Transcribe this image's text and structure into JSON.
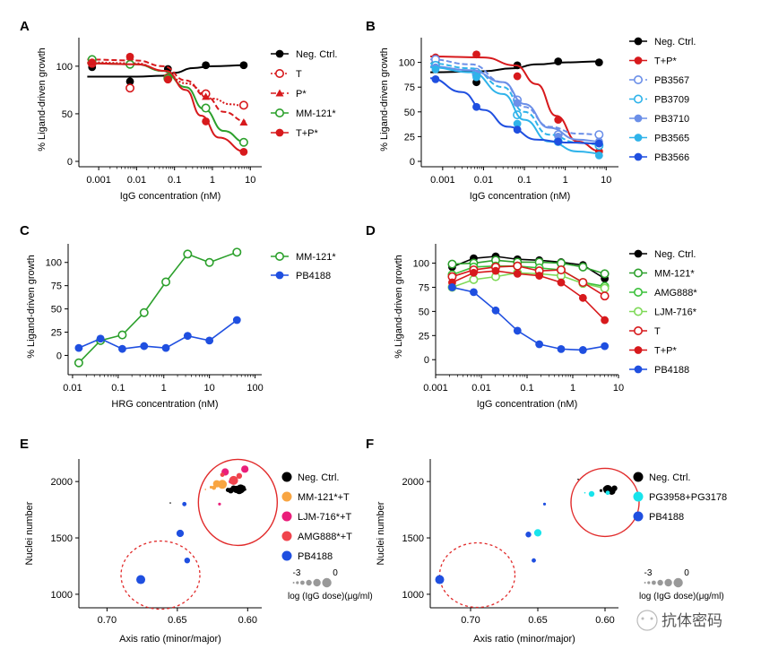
{
  "watermark": "抗体密码",
  "chart_data": [
    {
      "panel": "A",
      "type": "line",
      "xscale": "log",
      "xlabel": "IgG concentration (nM)",
      "ylabel": "% Ligand-driven growth",
      "xticks": [
        "0.001",
        "0.01",
        "0.1",
        "1",
        "10"
      ],
      "yticks": [
        "0",
        "50",
        "100"
      ],
      "xlim": [
        0.0003,
        20
      ],
      "ylim": [
        0,
        130
      ],
      "x": [
        0.00067,
        0.0067,
        0.067,
        0.67,
        6.7
      ],
      "legend": [
        "Neg. Ctrl.",
        "T",
        "P*",
        "MM-121*",
        "T+P*"
      ],
      "series": [
        {
          "name": "Neg. Ctrl.",
          "color": "#000000",
          "marker": "filled",
          "dash": "solid",
          "values": [
            99,
            84,
            97,
            101,
            101
          ],
          "fit": [
            [
              0.0005,
              89
            ],
            [
              0.01,
              89
            ],
            [
              0.05,
              90
            ],
            [
              0.1,
              93
            ],
            [
              0.3,
              98
            ],
            [
              1,
              100
            ],
            [
              7.5,
              101
            ]
          ]
        },
        {
          "name": "T",
          "color": "#d7191c",
          "marker": "open",
          "dash": "dotted",
          "values": [
            103,
            77,
            88,
            71,
            59
          ],
          "fit": [
            [
              0.0005,
              104
            ],
            [
              0.01,
              103
            ],
            [
              0.05,
              95
            ],
            [
              0.2,
              82
            ],
            [
              1,
              66
            ],
            [
              3,
              60
            ],
            [
              7.5,
              58
            ]
          ]
        },
        {
          "name": "P*",
          "color": "#d7191c",
          "marker": "triangle",
          "dash": "dashed",
          "values": [
            104,
            110,
            90,
            68,
            41
          ],
          "fit": [
            [
              0.0005,
              107
            ],
            [
              0.01,
              106
            ],
            [
              0.05,
              100
            ],
            [
              0.2,
              85
            ],
            [
              0.7,
              68
            ],
            [
              2,
              52
            ],
            [
              7.5,
              42
            ]
          ]
        },
        {
          "name": "MM-121*",
          "color": "#2ca02c",
          "marker": "open",
          "dash": "solid",
          "values": [
            107,
            102,
            87,
            56,
            20
          ],
          "fit": [
            [
              0.0005,
              103
            ],
            [
              0.01,
              102
            ],
            [
              0.05,
              95
            ],
            [
              0.2,
              78
            ],
            [
              0.6,
              55
            ],
            [
              2,
              32
            ],
            [
              7.5,
              20
            ]
          ]
        },
        {
          "name": "T+P*",
          "color": "#d7191c",
          "marker": "filled",
          "dash": "solid",
          "values": [
            104,
            110,
            86,
            42,
            10
          ],
          "fit": [
            [
              0.0005,
              103
            ],
            [
              0.01,
              102
            ],
            [
              0.06,
              95
            ],
            [
              0.2,
              75
            ],
            [
              0.5,
              48
            ],
            [
              1.5,
              25
            ],
            [
              7.5,
              10
            ]
          ]
        }
      ]
    },
    {
      "panel": "B",
      "type": "line",
      "xscale": "log",
      "xlabel": "IgG concentration (nM)",
      "ylabel": "% Ligand-driven growth",
      "xticks": [
        "0.001",
        "0.01",
        "0.1",
        "1",
        "10"
      ],
      "yticks": [
        "0",
        "25",
        "50",
        "75",
        "100"
      ],
      "xlim": [
        0.0003,
        20
      ],
      "ylim": [
        0,
        125
      ],
      "x": [
        0.00067,
        0.0067,
        0.067,
        0.67,
        6.7
      ],
      "legend": [
        "Neg. Ctrl.",
        "T+P*",
        "PB3567",
        "PB3709",
        "PB3710",
        "PB3565",
        "PB3566"
      ],
      "series": [
        {
          "name": "Neg. Ctrl.",
          "color": "#000000",
          "marker": "filled",
          "dash": "solid",
          "values": [
            100,
            80,
            97,
            101,
            100
          ],
          "fit": [
            [
              0.0005,
              90
            ],
            [
              0.01,
              91
            ],
            [
              0.05,
              94
            ],
            [
              0.2,
              98
            ],
            [
              1,
              100
            ],
            [
              7.5,
              101
            ]
          ]
        },
        {
          "name": "T+P*",
          "color": "#d7191c",
          "marker": "filled",
          "dash": "solid",
          "values": [
            105,
            108,
            86,
            42,
            10
          ],
          "fit": [
            [
              0.0005,
              106
            ],
            [
              0.01,
              105
            ],
            [
              0.06,
              97
            ],
            [
              0.2,
              78
            ],
            [
              0.6,
              46
            ],
            [
              2,
              20
            ],
            [
              7.5,
              10
            ]
          ]
        },
        {
          "name": "PB3567",
          "color": "#6b8fe8",
          "marker": "open",
          "dash": "dashed",
          "values": [
            103,
            90,
            62,
            27,
            27
          ],
          "fit": [
            [
              0.0005,
              103
            ],
            [
              0.005,
              98
            ],
            [
              0.03,
              80
            ],
            [
              0.1,
              55
            ],
            [
              0.4,
              35
            ],
            [
              2,
              28
            ],
            [
              7.5,
              27
            ]
          ]
        },
        {
          "name": "PB3709",
          "color": "#2fb3ea",
          "marker": "open",
          "dash": "dashed",
          "values": [
            97,
            88,
            47,
            20,
            16
          ],
          "fit": [
            [
              0.0005,
              99
            ],
            [
              0.005,
              94
            ],
            [
              0.03,
              75
            ],
            [
              0.1,
              50
            ],
            [
              0.4,
              27
            ],
            [
              2,
              19
            ],
            [
              7.5,
              17
            ]
          ]
        },
        {
          "name": "PB3710",
          "color": "#6b8fe8",
          "marker": "filled",
          "dash": "solid",
          "values": [
            95,
            87,
            59,
            25,
            20
          ],
          "fit": [
            [
              0.0005,
              96
            ],
            [
              0.005,
              92
            ],
            [
              0.03,
              80
            ],
            [
              0.1,
              58
            ],
            [
              0.4,
              34
            ],
            [
              2,
              22
            ],
            [
              7.5,
              20
            ]
          ]
        },
        {
          "name": "PB3565",
          "color": "#2fb3ea",
          "marker": "filled",
          "dash": "solid",
          "values": [
            93,
            85,
            38,
            20,
            6
          ],
          "fit": [
            [
              0.0005,
              95
            ],
            [
              0.005,
              90
            ],
            [
              0.03,
              68
            ],
            [
              0.1,
              42
            ],
            [
              0.4,
              20
            ],
            [
              2,
              10
            ],
            [
              7.5,
              8
            ]
          ]
        },
        {
          "name": "PB3566",
          "color": "#1f4fe0",
          "marker": "filled",
          "dash": "solid",
          "values": [
            83,
            55,
            32,
            20,
            18
          ],
          "fit": [
            [
              0.0005,
              84
            ],
            [
              0.003,
              70
            ],
            [
              0.01,
              52
            ],
            [
              0.04,
              35
            ],
            [
              0.2,
              22
            ],
            [
              1,
              19
            ],
            [
              7.5,
              18
            ]
          ]
        }
      ]
    },
    {
      "panel": "C",
      "type": "line",
      "xscale": "log",
      "xlabel": "HRG concentration (nM)",
      "ylabel": "% Ligand-driven growth",
      "xticks": [
        "0.01",
        "0.1",
        "1",
        "10",
        "100"
      ],
      "yticks": [
        "0",
        "25",
        "50",
        "75",
        "100"
      ],
      "xlim": [
        0.008,
        140
      ],
      "ylim": [
        -15,
        120
      ],
      "x": [
        0.0137,
        0.041,
        0.123,
        0.37,
        1.11,
        3.33,
        10,
        40
      ],
      "legend": [
        "MM-121*",
        "PB4188"
      ],
      "series": [
        {
          "name": "MM-121*",
          "color": "#2ca02c",
          "marker": "open",
          "dash": "solid",
          "values": [
            -8,
            16,
            22,
            46,
            79,
            109,
            100,
            111
          ]
        },
        {
          "name": "PB4188",
          "color": "#1f4fe0",
          "marker": "filled",
          "dash": "solid",
          "values": [
            8,
            18,
            7,
            10,
            8,
            21,
            16,
            38
          ]
        }
      ]
    },
    {
      "panel": "D",
      "type": "line",
      "xscale": "log",
      "xlabel": "IgG concentration (nM)",
      "ylabel": "% Ligand-driven growth",
      "xticks": [
        "0.001",
        "0.01",
        "0.1",
        "1",
        "10"
      ],
      "yticks": [
        "0",
        "25",
        "50",
        "75",
        "100"
      ],
      "xlim": [
        0.001,
        10
      ],
      "ylim": [
        -10,
        120
      ],
      "x": [
        0.0023,
        0.0068,
        0.0206,
        0.0617,
        0.185,
        0.556,
        1.67,
        5
      ],
      "legend": [
        "Neg. Ctrl.",
        "MM-121*",
        "AMG888*",
        "LJM-716*",
        "T",
        "T+P*",
        "PB4188"
      ],
      "series": [
        {
          "name": "Neg. Ctrl.",
          "color": "#000000",
          "marker": "filled",
          "dash": "solid",
          "values": [
            96,
            105,
            107,
            104,
            103,
            101,
            98,
            84
          ]
        },
        {
          "name": "MM-121*",
          "color": "#2ca02c",
          "marker": "open",
          "dash": "solid",
          "values": [
            99,
            100,
            103,
            101,
            101,
            100,
            96,
            89
          ]
        },
        {
          "name": "AMG888*",
          "color": "#39c039",
          "marker": "open",
          "dash": "solid",
          "values": [
            88,
            96,
            97,
            97,
            95,
            93,
            80,
            76
          ]
        },
        {
          "name": "LJM-716*",
          "color": "#7ed957",
          "marker": "open",
          "dash": "solid",
          "values": [
            75,
            83,
            86,
            90,
            89,
            87,
            79,
            74
          ]
        },
        {
          "name": "T",
          "color": "#d7191c",
          "marker": "open",
          "dash": "solid",
          "values": [
            86,
            93,
            96,
            97,
            92,
            93,
            80,
            66
          ]
        },
        {
          "name": "T+P*",
          "color": "#d7191c",
          "marker": "filled",
          "dash": "solid",
          "values": [
            80,
            90,
            92,
            89,
            87,
            80,
            64,
            41
          ]
        },
        {
          "name": "PB4188",
          "color": "#1f4fe0",
          "marker": "filled",
          "dash": "solid",
          "values": [
            75,
            70,
            51,
            30,
            16,
            11,
            10,
            14
          ]
        }
      ]
    },
    {
      "panel": "E",
      "type": "scatter",
      "xlabel": "Axis ratio (minor/major)",
      "ylabel": "Nuclei number",
      "xticks": [
        "0.70",
        "0.65",
        "0.60"
      ],
      "yticks": [
        "1000",
        "1500",
        "2000"
      ],
      "xlim": [
        0.72,
        0.59
      ],
      "ylim": [
        880,
        2200
      ],
      "legend": [
        "Neg. Ctrl.",
        "MM-121*+T",
        "LJM-716*+T",
        "AMG888*+T",
        "PB4188"
      ],
      "size_legend_label": "log (IgG dose)(μg/ml)",
      "size_legend_ticks": [
        "-3",
        "0"
      ],
      "series": [
        {
          "name": "Neg. Ctrl.",
          "color": "#000000",
          "points": [
            [
              0.612,
              1920,
              3
            ],
            [
              0.608,
              1930,
              4
            ],
            [
              0.606,
              1920,
              4
            ],
            [
              0.605,
              1935,
              5
            ],
            [
              0.61,
              1940,
              3
            ],
            [
              0.614,
              1925,
              2
            ],
            [
              0.603,
              1945,
              2
            ],
            [
              0.602,
              1930,
              1
            ],
            [
              0.655,
              1810,
              0
            ]
          ]
        },
        {
          "name": "MM-121*+T",
          "color": "#f8a542",
          "points": [
            [
              0.622,
              1980,
              4
            ],
            [
              0.618,
              1975,
              5
            ],
            [
              0.624,
              1945,
              2
            ],
            [
              0.626,
              1950,
              1
            ],
            [
              0.63,
              1930,
              0
            ]
          ]
        },
        {
          "name": "LJM-716*+T",
          "color": "#ea1e7a",
          "points": [
            [
              0.616,
              2085,
              4
            ],
            [
              0.602,
              2110,
              4
            ],
            [
              0.612,
              2000,
              2
            ],
            [
              0.62,
              1800,
              1
            ]
          ]
        },
        {
          "name": "AMG888*+T",
          "color": "#f0444d",
          "points": [
            [
              0.61,
              2010,
              5
            ],
            [
              0.606,
              2050,
              3
            ],
            [
              0.618,
              2060,
              2
            ]
          ]
        },
        {
          "name": "PB4188",
          "color": "#1f4fe0",
          "points": [
            [
              0.676,
              1130,
              5
            ],
            [
              0.648,
              1540,
              4
            ],
            [
              0.643,
              1300,
              3
            ],
            [
              0.645,
              1800,
              2
            ]
          ]
        }
      ]
    },
    {
      "panel": "F",
      "type": "scatter",
      "xlabel": "Axis ratio (minor/major)",
      "ylabel": "Nuclei number",
      "xticks": [
        "0.70",
        "0.65",
        "0.60"
      ],
      "yticks": [
        "1000",
        "1500",
        "2000"
      ],
      "xlim": [
        0.73,
        0.59
      ],
      "ylim": [
        880,
        2200
      ],
      "legend": [
        "Neg. Ctrl.",
        "PG3958+PG3178",
        "PB4188"
      ],
      "size_legend_label": "log (IgG dose)(μg/ml)",
      "size_legend_ticks": [
        "-3",
        "0"
      ],
      "series": [
        {
          "name": "Neg. Ctrl.",
          "color": "#000000",
          "points": [
            [
              0.598,
              1930,
              5
            ],
            [
              0.595,
              1915,
              4
            ],
            [
              0.593,
              1940,
              3
            ],
            [
              0.6,
              1935,
              2
            ],
            [
              0.603,
              1920,
              1
            ],
            [
              0.62,
              2020,
              0
            ]
          ]
        },
        {
          "name": "PG3958+PG3178",
          "color": "#18e4ec",
          "points": [
            [
              0.61,
              1890,
              3
            ],
            [
              0.598,
              1900,
              2
            ],
            [
              0.615,
              1900,
              0
            ],
            [
              0.65,
              1545,
              4
            ]
          ]
        },
        {
          "name": "PB4188",
          "color": "#1f4fe0",
          "points": [
            [
              0.723,
              1130,
              5
            ],
            [
              0.657,
              1530,
              3
            ],
            [
              0.653,
              1300,
              2
            ],
            [
              0.645,
              1800,
              1
            ]
          ]
        }
      ]
    }
  ]
}
